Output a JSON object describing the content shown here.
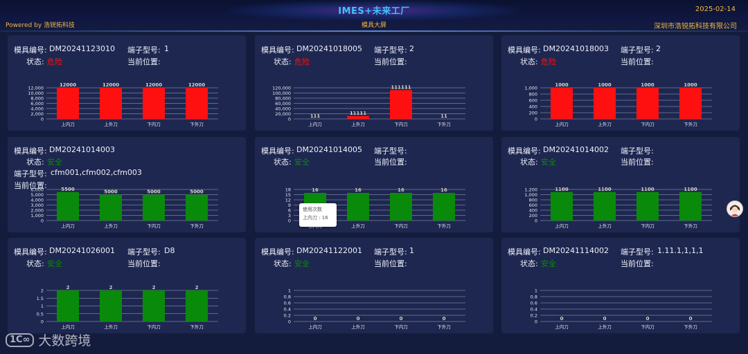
{
  "header": {
    "title": "IMES+未来工厂",
    "subtitle": "模具大屏",
    "powered_by": "Powered by 浩锐拓科技",
    "date": "2025-02-14",
    "company": "深圳市浩锐拓科技有限公司"
  },
  "labels": {
    "mold_no": "模具编号:",
    "terminal_model": "端子型号:",
    "status": "状态:",
    "location": "当前位置:"
  },
  "colors": {
    "danger": "#ff1010",
    "safe": "#0a8a0a",
    "accent": "#3fc3ff",
    "gold": "#f0b84a"
  },
  "cards": [
    {
      "mold_no": "DM20241123010",
      "terminal": "1",
      "status": "危险",
      "status_type": "danger",
      "location": ""
    },
    {
      "mold_no": "DM20241018005",
      "terminal": "2",
      "status": "危险",
      "status_type": "danger",
      "location": ""
    },
    {
      "mold_no": "DM20241018003",
      "terminal": "2",
      "status": "危险",
      "status_type": "danger",
      "location": ""
    },
    {
      "mold_no": "DM20241014003",
      "terminal": "cfm001,cfm002,cfm003",
      "status": "安全",
      "status_type": "safe",
      "location": "",
      "layout": "wrapped"
    },
    {
      "mold_no": "DM20241014005",
      "terminal": "",
      "status": "安全",
      "status_type": "safe",
      "location": ""
    },
    {
      "mold_no": "DM20241014002",
      "terminal": "",
      "status": "安全",
      "status_type": "safe",
      "location": ""
    },
    {
      "mold_no": "DM20241026001",
      "terminal": "D8",
      "status": "安全",
      "status_type": "safe",
      "location": ""
    },
    {
      "mold_no": "DM20241122001",
      "terminal": "1",
      "status": "安全",
      "status_type": "safe",
      "location": ""
    },
    {
      "mold_no": "DM20241114002",
      "terminal": "1.11.1,1,1,1",
      "status": "安全",
      "status_type": "safe",
      "location": ""
    }
  ],
  "chart_data": [
    {
      "type": "bar",
      "categories": [
        "上内刀",
        "上外刀",
        "下内刀",
        "下外刀"
      ],
      "values": [
        12000,
        12000,
        12000,
        12000
      ],
      "labels": [
        "12000",
        "12000",
        "12000",
        "12000"
      ],
      "ylim": [
        0,
        12000
      ],
      "yticks": [
        "0",
        "2,000",
        "4,000",
        "6,000",
        "8,000",
        "10,000",
        "12,000"
      ],
      "color": "#ff1010"
    },
    {
      "type": "bar",
      "categories": [
        "上内刀",
        "上外刀",
        "下内刀",
        "下外刀"
      ],
      "values": [
        111,
        11111,
        111111,
        11
      ],
      "labels": [
        "111",
        "11111",
        "111111",
        "11"
      ],
      "ylim": [
        0,
        120000
      ],
      "yticks": [
        "0",
        "20,000",
        "40,000",
        "60,000",
        "80,000",
        "100,000",
        "120,000"
      ],
      "color": "#ff1010"
    },
    {
      "type": "bar",
      "categories": [
        "上内刀",
        "上外刀",
        "下内刀",
        "下外刀"
      ],
      "values": [
        1000,
        1000,
        1000,
        1000
      ],
      "labels": [
        "1000",
        "1000",
        "1000",
        "1000"
      ],
      "ylim": [
        0,
        1000
      ],
      "yticks": [
        "0",
        "200",
        "400",
        "600",
        "800",
        "1,000"
      ],
      "color": "#ff1010"
    },
    {
      "type": "bar",
      "categories": [
        "上内刀",
        "上外刀",
        "下内刀",
        "下外刀"
      ],
      "values": [
        5500,
        5000,
        5000,
        5000
      ],
      "labels": [
        "5500",
        "5000",
        "5000",
        "5000"
      ],
      "ylim": [
        0,
        6000
      ],
      "yticks": [
        "0",
        "1,000",
        "2,000",
        "3,000",
        "4,000",
        "5,000",
        "6,000"
      ],
      "color": "#0a8a0a"
    },
    {
      "type": "bar",
      "categories": [
        "上内刀",
        "上外刀",
        "下内刀",
        "下外刀"
      ],
      "values": [
        16,
        16,
        16,
        16
      ],
      "labels": [
        "16",
        "16",
        "16",
        "16"
      ],
      "ylim": [
        0,
        18
      ],
      "yticks": [
        "0",
        "3",
        "6",
        "9",
        "12",
        "15",
        "18"
      ],
      "color": "#0a8a0a"
    },
    {
      "type": "bar",
      "categories": [
        "上内刀",
        "上外刀",
        "下内刀",
        "下外刀"
      ],
      "values": [
        1100,
        1100,
        1100,
        1100
      ],
      "labels": [
        "1100",
        "1100",
        "1100",
        "1100"
      ],
      "ylim": [
        0,
        1200
      ],
      "yticks": [
        "0",
        "200",
        "400",
        "600",
        "800",
        "1,000",
        "1,200"
      ],
      "color": "#0a8a0a"
    },
    {
      "type": "bar",
      "categories": [
        "上内刀",
        "上外刀",
        "下内刀",
        "下外刀"
      ],
      "values": [
        2,
        2,
        2,
        2
      ],
      "labels": [
        "2",
        "2",
        "2",
        "2"
      ],
      "ylim": [
        0,
        2
      ],
      "yticks": [
        "0",
        "0.5",
        "1",
        "1.5",
        "2"
      ],
      "color": "#0a8a0a"
    },
    {
      "type": "bar",
      "categories": [
        "上内刀",
        "上外刀",
        "下内刀",
        "下外刀"
      ],
      "values": [
        0,
        0,
        0,
        0
      ],
      "labels": [
        "0",
        "0",
        "0",
        "0"
      ],
      "ylim": [
        0,
        1
      ],
      "yticks": [
        "0",
        "0.2",
        "0.4",
        "0.6",
        "0.8",
        "1"
      ],
      "color": "#0a8a0a"
    },
    {
      "type": "bar",
      "categories": [
        "上内刀",
        "上外刀",
        "下内刀",
        "下外刀"
      ],
      "values": [
        0,
        0,
        0,
        0
      ],
      "labels": [
        "0",
        "0",
        "0",
        "0"
      ],
      "ylim": [
        0,
        1
      ],
      "yticks": [
        "0",
        "0.2",
        "0.4",
        "0.6",
        "0.8",
        "1"
      ],
      "color": "#0a8a0a"
    }
  ],
  "tooltip": {
    "title": "使用次数",
    "item_label": "上内刀 : 16"
  },
  "watermark": {
    "logo_text": "1C∞",
    "text": "大数跨境"
  }
}
